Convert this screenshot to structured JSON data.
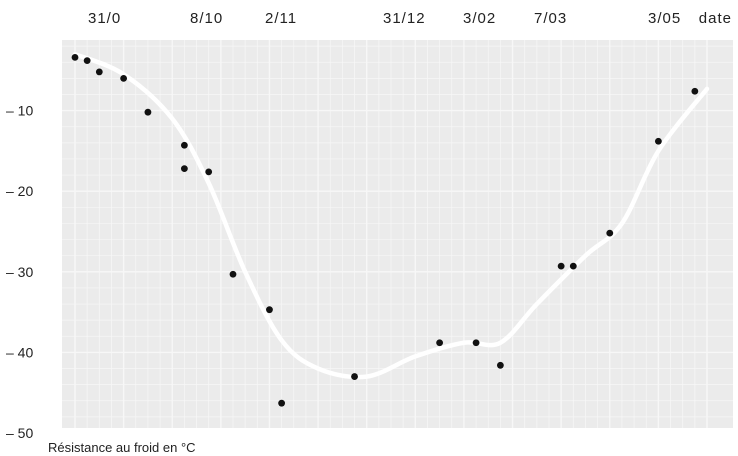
{
  "colors": {
    "background": "#ffffff",
    "panel": "#ebebeb",
    "grid": "#f7f7f7",
    "curve": "#ffffff",
    "point": "#111111",
    "text": "#222222"
  },
  "chart_data": {
    "type": "scatter",
    "title": "",
    "xlabel": "date",
    "ylabel": "Résistance au froid en °C",
    "x_tick_labels": [
      "31/0",
      "8/10",
      "2/11",
      "31/12",
      "3/02",
      "7/03",
      "3/05"
    ],
    "y_ticks": [
      {
        "value": -10,
        "label": "– 10"
      },
      {
        "value": -20,
        "label": "– 20"
      },
      {
        "value": -30,
        "label": "– 30"
      },
      {
        "value": -40,
        "label": "– 40"
      },
      {
        "value": -50,
        "label": "– 50"
      }
    ],
    "ylim": [
      -50,
      0
    ],
    "grid": true,
    "series": [
      {
        "kind": "points",
        "values": [
          {
            "x": 0,
            "y": -3.4
          },
          {
            "x": 1,
            "y": -3.8
          },
          {
            "x": 2,
            "y": -5.2
          },
          {
            "x": 4,
            "y": -6.0
          },
          {
            "x": 6,
            "y": -10.2
          },
          {
            "x": 9,
            "y": -14.3
          },
          {
            "x": 9,
            "y": -17.2
          },
          {
            "x": 11,
            "y": -17.6
          },
          {
            "x": 13,
            "y": -30.3
          },
          {
            "x": 16,
            "y": -34.7
          },
          {
            "x": 17,
            "y": -46.3
          },
          {
            "x": 23,
            "y": -43.0
          },
          {
            "x": 30,
            "y": -38.8
          },
          {
            "x": 33,
            "y": -38.8
          },
          {
            "x": 35,
            "y": -41.6
          },
          {
            "x": 40,
            "y": -29.3
          },
          {
            "x": 41,
            "y": -29.3
          },
          {
            "x": 44,
            "y": -25.2
          },
          {
            "x": 48,
            "y": -13.8
          },
          {
            "x": 51,
            "y": -7.6
          }
        ]
      },
      {
        "kind": "fitted-curve",
        "values": [
          {
            "x": 0,
            "y": -3.0
          },
          {
            "x": 4,
            "y": -5.5
          },
          {
            "x": 8,
            "y": -11.0
          },
          {
            "x": 11,
            "y": -19.0
          },
          {
            "x": 14,
            "y": -30.0
          },
          {
            "x": 17,
            "y": -38.5
          },
          {
            "x": 20,
            "y": -42.0
          },
          {
            "x": 24,
            "y": -43.0
          },
          {
            "x": 28,
            "y": -40.5
          },
          {
            "x": 32,
            "y": -38.8
          },
          {
            "x": 35,
            "y": -38.8
          },
          {
            "x": 38,
            "y": -34.0
          },
          {
            "x": 42,
            "y": -28.0
          },
          {
            "x": 45,
            "y": -24.0
          },
          {
            "x": 48,
            "y": -15.0
          },
          {
            "x": 52,
            "y": -7.3
          }
        ]
      }
    ]
  }
}
